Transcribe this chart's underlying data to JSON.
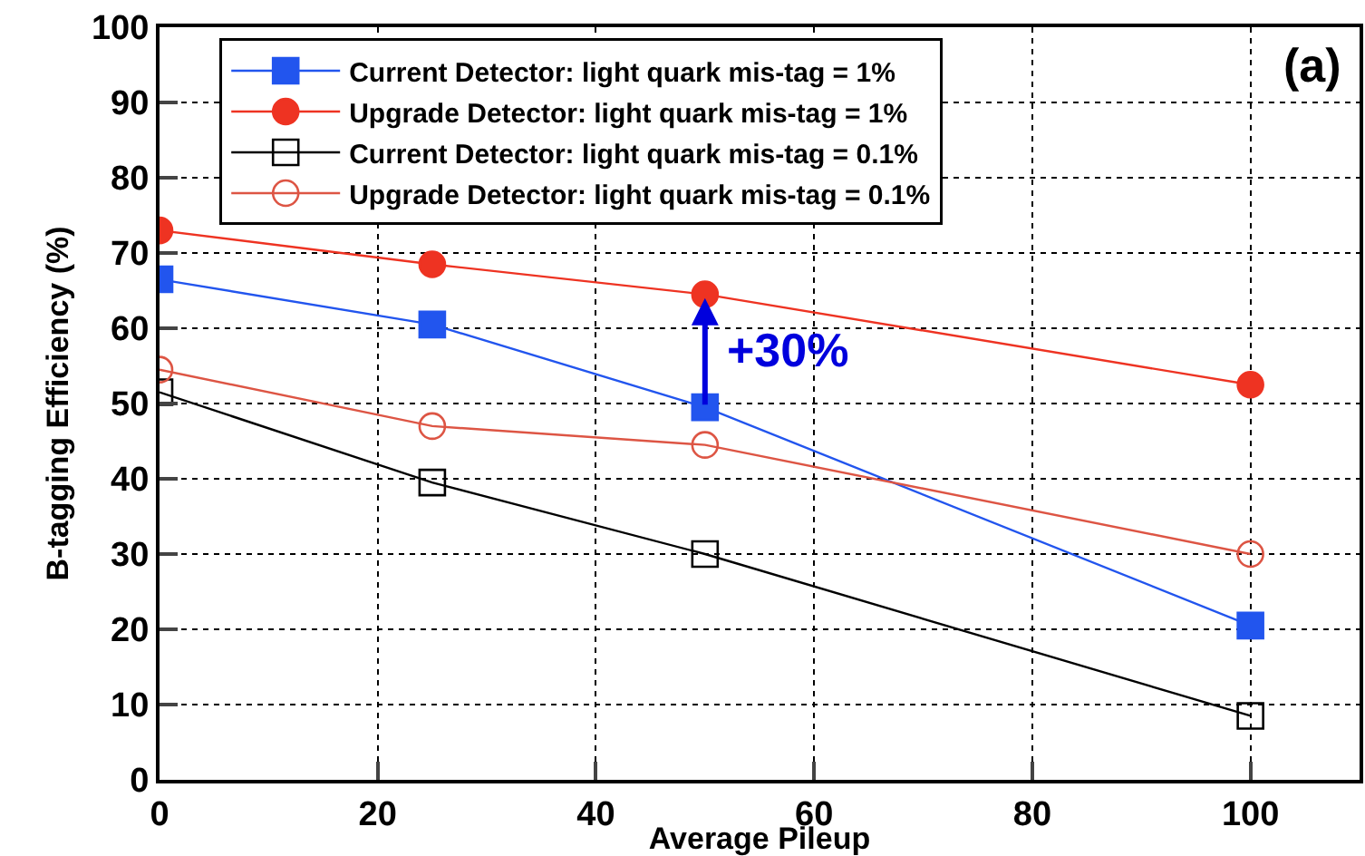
{
  "chart_data": {
    "type": "line",
    "xlabel": "Average Pileup",
    "ylabel": "B-tagging Efficiency (%)",
    "x": [
      0,
      25,
      50,
      100
    ],
    "series": [
      {
        "name": "Current Detector: light quark mis-tag = 1%",
        "color": "#2255ee",
        "marker": "square",
        "values": [
          66.5,
          60.5,
          49.5,
          20.5
        ]
      },
      {
        "name": "Upgrade Detector: light quark mis-tag = 1%",
        "color": "#ee3322",
        "marker": "circle",
        "values": [
          73,
          68.5,
          64.5,
          52.5
        ]
      },
      {
        "name": "Current Detector: light quark mis-tag = 0.1%",
        "color": "#000000",
        "marker": "square-open",
        "values": [
          51.5,
          39.5,
          30,
          8.5
        ]
      },
      {
        "name": "Upgrade Detector: light quark mis-tag = 0.1%",
        "color": "#dd5544",
        "marker": "circle-open",
        "values": [
          54.5,
          47,
          44.5,
          30
        ]
      }
    ],
    "annotations": [
      {
        "text": "+30%",
        "x": 50,
        "y": 64.5
      },
      "(a)"
    ],
    "xlim": [
      0,
      110
    ],
    "xticks": [
      0,
      20,
      40,
      60,
      80,
      100
    ],
    "ylim": [
      0,
      100
    ],
    "yticks": [
      0,
      10,
      20,
      30,
      40,
      50,
      60,
      70,
      80,
      90,
      100
    ],
    "grid": true,
    "legend": "top"
  }
}
